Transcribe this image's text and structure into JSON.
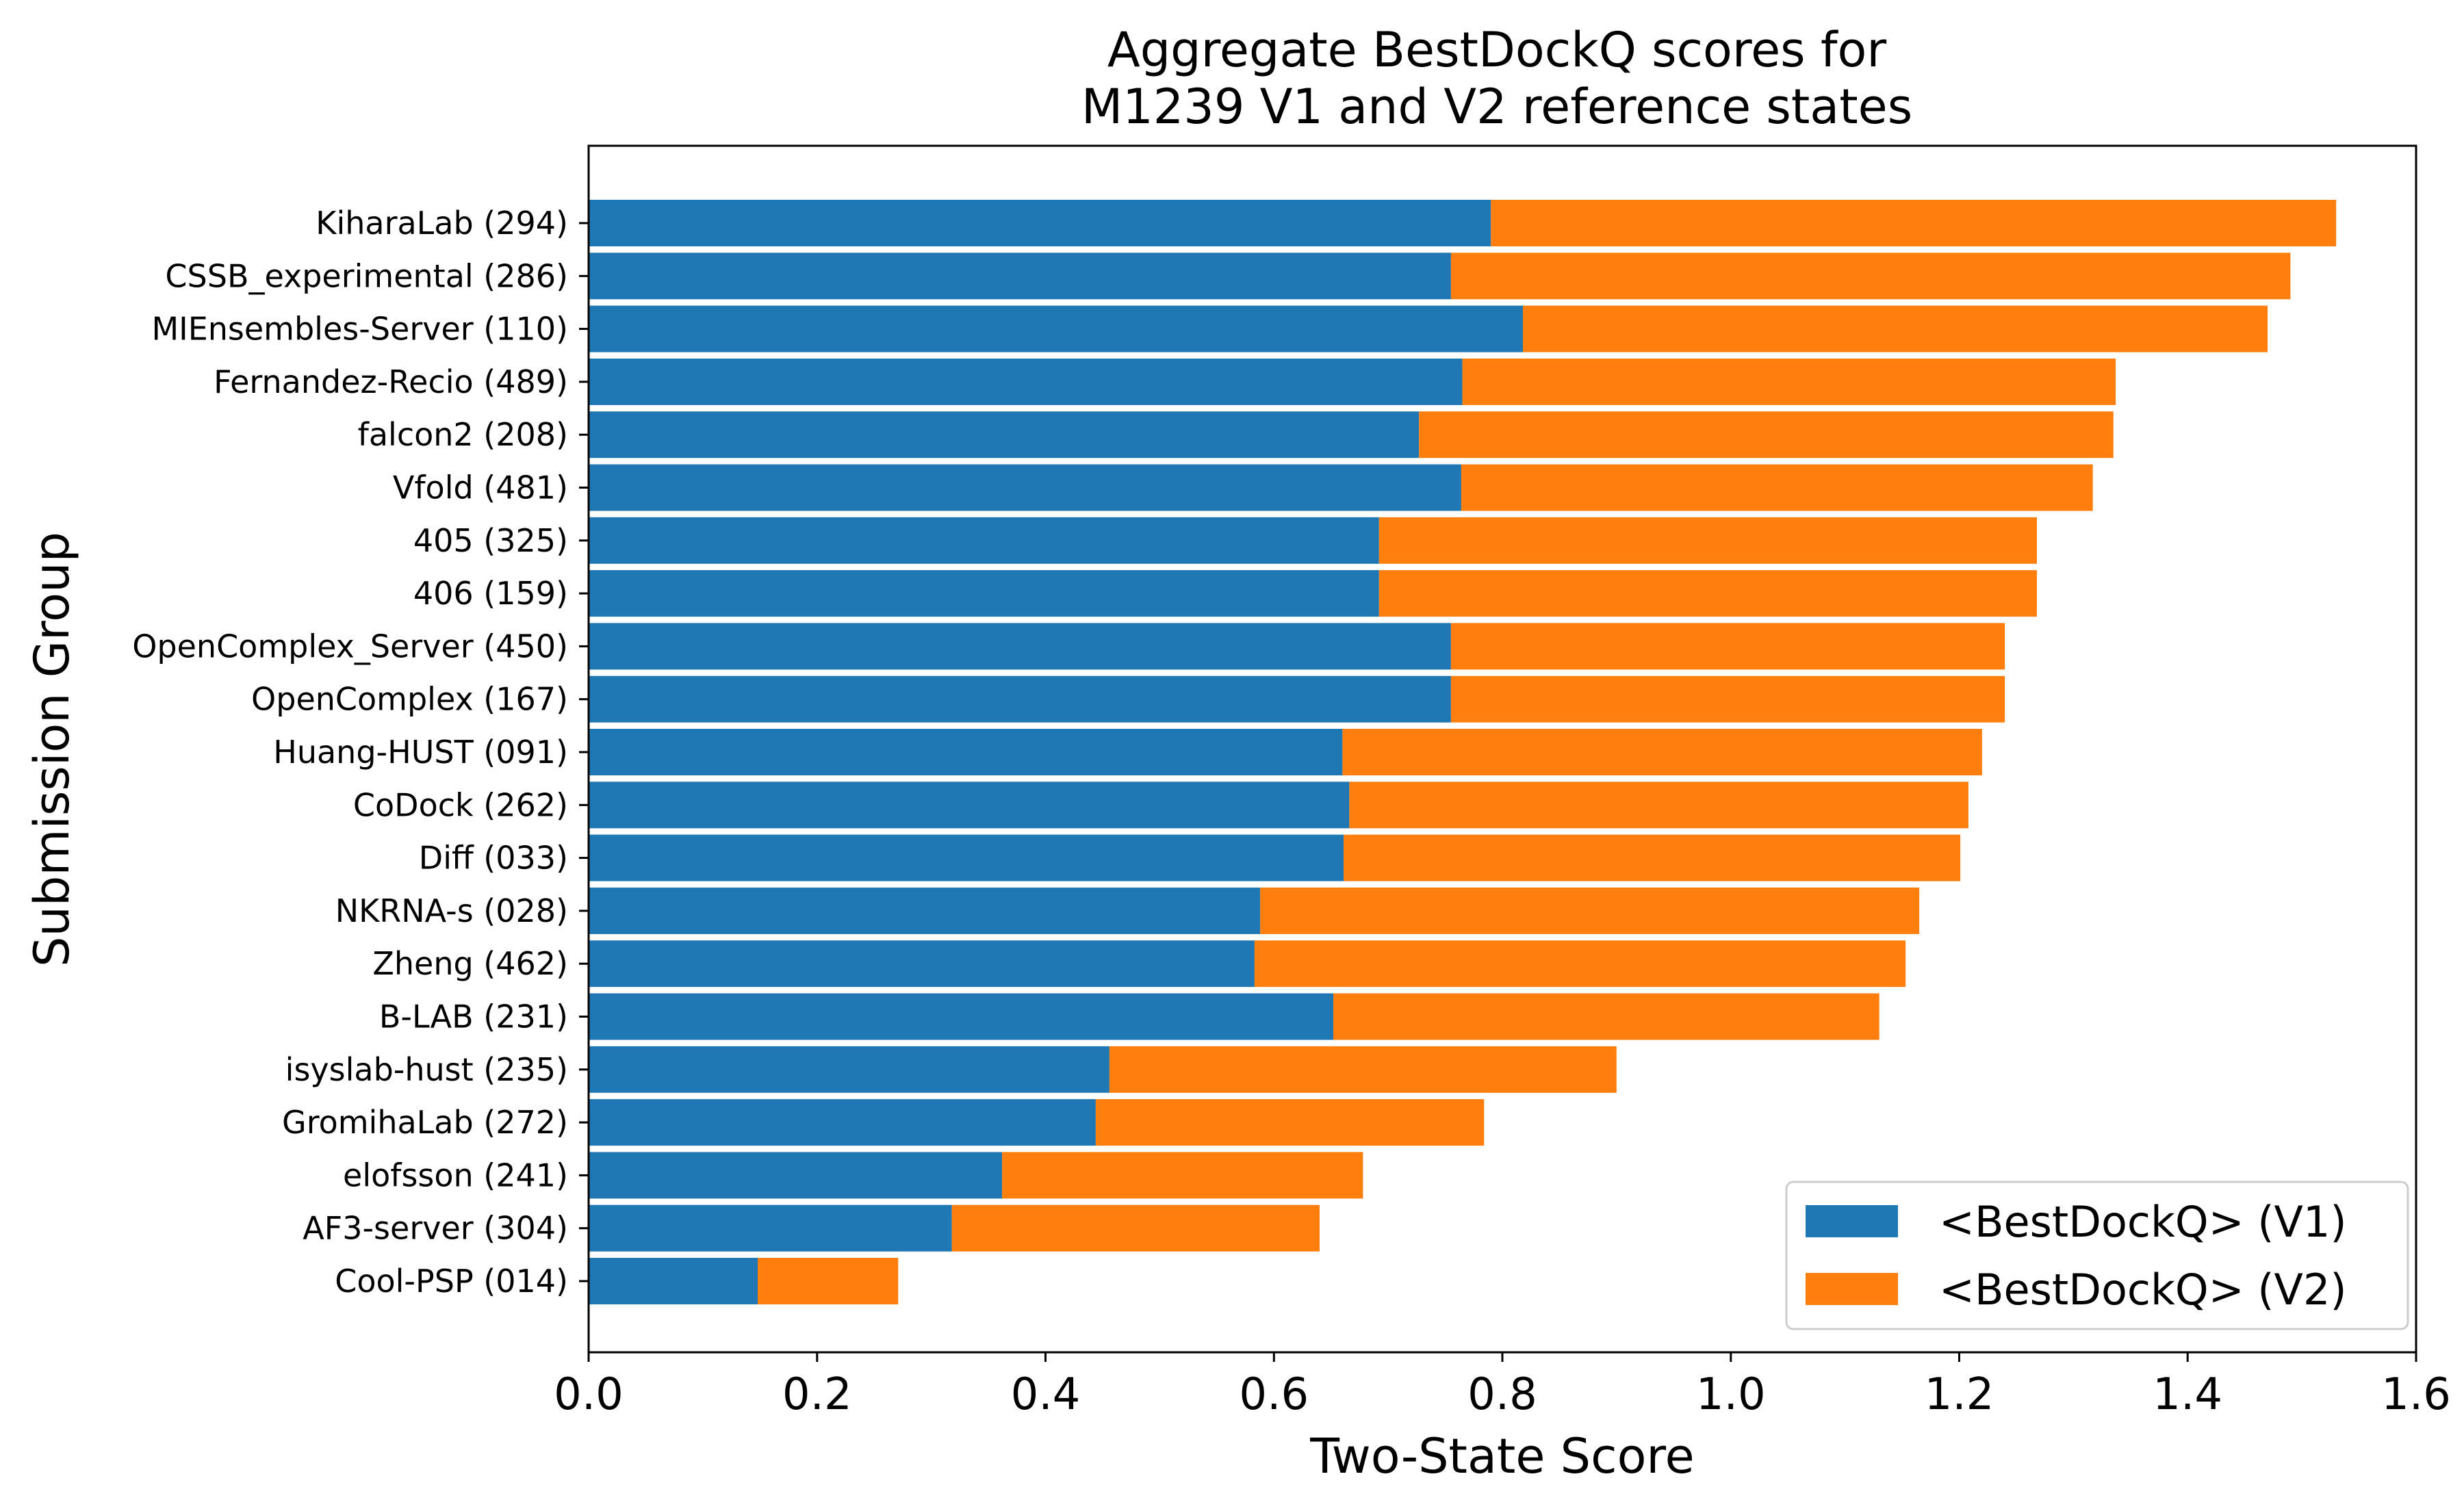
{
  "chart_data": {
    "type": "bar",
    "stacked": true,
    "orientation": "horizontal",
    "title_line1": "Aggregate BestDockQ scores for",
    "title_line2": "M1239 V1 and V2 reference states",
    "xlabel": "Two-State Score",
    "ylabel": "Submission Group",
    "xlim": [
      0.0,
      1.6
    ],
    "xticks": [
      "0.0",
      "0.2",
      "0.4",
      "0.6",
      "0.8",
      "1.0",
      "1.2",
      "1.4",
      "1.6"
    ],
    "grid": false,
    "legend_position": "bottom-right",
    "categories": [
      "KiharaLab (294)",
      "CSSB_experimental (286)",
      "MIEnsembles-Server (110)",
      "Fernandez-Recio (489)",
      "falcon2 (208)",
      "Vfold (481)",
      "405 (325)",
      "406 (159)",
      "OpenComplex_Server (450)",
      "OpenComplex (167)",
      "Huang-HUST (091)",
      "CoDock (262)",
      "Diff (033)",
      "NKRNA-s (028)",
      "Zheng (462)",
      "B-LAB (231)",
      "isyslab-hust (235)",
      "GromihaLab (272)",
      "elofsson (241)",
      "AF3-server (304)",
      "Cool-PSP (014)"
    ],
    "series": [
      {
        "name": "<BestDockQ> (V1)",
        "color": "#1f77b4",
        "values": [
          0.79,
          0.755,
          0.818,
          0.765,
          0.727,
          0.764,
          0.692,
          0.692,
          0.755,
          0.755,
          0.66,
          0.666,
          0.661,
          0.588,
          0.583,
          0.652,
          0.456,
          0.444,
          0.362,
          0.318,
          0.148
        ]
      },
      {
        "name": "<BestDockQ> (V2)",
        "color": "#ff7f0e",
        "values": [
          0.74,
          0.735,
          0.652,
          0.572,
          0.608,
          0.553,
          0.576,
          0.576,
          0.485,
          0.485,
          0.56,
          0.542,
          0.54,
          0.577,
          0.57,
          0.478,
          0.444,
          0.34,
          0.316,
          0.322,
          0.123
        ]
      }
    ]
  }
}
